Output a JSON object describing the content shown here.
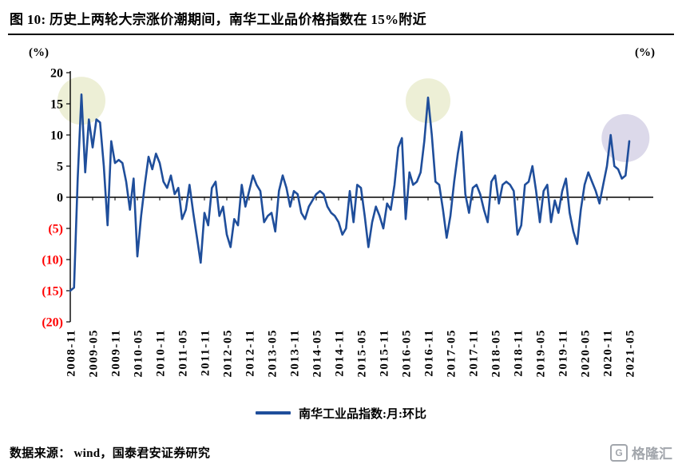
{
  "header": {
    "title": "图 10:  历史上两轮大宗涨价潮期间，南华工业品价格指数在 15%附近"
  },
  "chart_data": {
    "type": "line",
    "unit_left": "(%)",
    "unit_right": "(%)",
    "ylim": [
      -20,
      20
    ],
    "grid": "off",
    "legend_position": "bottom",
    "negative_tick_color": "#FF0000",
    "y_ticks": [
      {
        "value": 20,
        "label": "20"
      },
      {
        "value": 15,
        "label": "15"
      },
      {
        "value": 10,
        "label": "10"
      },
      {
        "value": 5,
        "label": "5"
      },
      {
        "value": 0,
        "label": "0"
      },
      {
        "value": -5,
        "label": "(5)"
      },
      {
        "value": -10,
        "label": "(10)"
      },
      {
        "value": -15,
        "label": "(15)"
      },
      {
        "value": -20,
        "label": "(20)"
      }
    ],
    "x_tick_step": 6,
    "x_tick_labels": [
      "2008-11",
      "2009-05",
      "2009-11",
      "2010-05",
      "2010-11",
      "2011-05",
      "2011-11",
      "2012-05",
      "2012-11",
      "2013-05",
      "2013-11",
      "2014-05",
      "2014-11",
      "2015-05",
      "2015-11",
      "2016-05",
      "2016-11",
      "2017-05",
      "2017-11",
      "2018-05",
      "2018-11",
      "2019-05",
      "2019-11",
      "2020-05",
      "2020-11",
      "2021-05"
    ],
    "series": [
      {
        "name": "南华工业品指数:月:环比",
        "color": "#1F4E9B",
        "values": [
          -15,
          -14.5,
          3,
          16.5,
          4,
          12.5,
          8,
          12.5,
          12,
          5,
          -4.5,
          9,
          5.5,
          6,
          5.5,
          2.5,
          -2,
          3,
          -9.5,
          -3,
          2,
          6.5,
          4.5,
          7,
          5.5,
          2.5,
          1.5,
          3.5,
          0.5,
          1.5,
          -3.5,
          -2,
          2,
          -2.5,
          -6.5,
          -10.5,
          -2.5,
          -4.5,
          1.5,
          2.5,
          -3,
          -1.5,
          -6,
          -8,
          -3.5,
          -4.5,
          2,
          -1.5,
          1,
          3.5,
          2,
          1,
          -4,
          -3,
          -2.5,
          -5.5,
          1,
          3.5,
          1.5,
          -1.5,
          1,
          0.5,
          -2.5,
          -3.5,
          -1.5,
          -0.5,
          0.5,
          1,
          0.5,
          -1.5,
          -2.5,
          -3,
          -4,
          -6,
          -5,
          1,
          -4,
          2,
          1.5,
          -3,
          -8,
          -4,
          -1.5,
          -3,
          -5,
          -1,
          -2,
          2,
          8,
          9.5,
          -3.5,
          4,
          2,
          2.5,
          4,
          9,
          16,
          10,
          2.5,
          2,
          -2,
          -6.5,
          -3,
          2.5,
          7,
          10.5,
          0.5,
          -2.5,
          1.5,
          2,
          0.5,
          -2,
          -4,
          2.5,
          3.5,
          -1,
          2,
          2.5,
          2,
          1,
          -6,
          -4.5,
          2,
          2.5,
          5,
          1,
          -4,
          1,
          2,
          -4,
          -0.5,
          -2.5,
          1,
          3,
          -2.5,
          -5.5,
          -7.5,
          -2,
          2,
          4,
          2.5,
          1,
          -1,
          2,
          5,
          10,
          5,
          4.5,
          3,
          3.5,
          9
        ]
      }
    ],
    "highlights": [
      {
        "index": 3,
        "value": 15.5,
        "r": 30,
        "color": "#EDEFD6"
      },
      {
        "index": 96,
        "value": 15.5,
        "r": 28,
        "color": "#EDEFD6"
      },
      {
        "index": 149,
        "value": 9.5,
        "r": 30,
        "color": "#DCD9EA"
      }
    ]
  },
  "footer": {
    "source": "数据来源：  wind，国泰君安证券研究"
  },
  "watermark": {
    "icon": "G",
    "text": "格隆汇"
  }
}
